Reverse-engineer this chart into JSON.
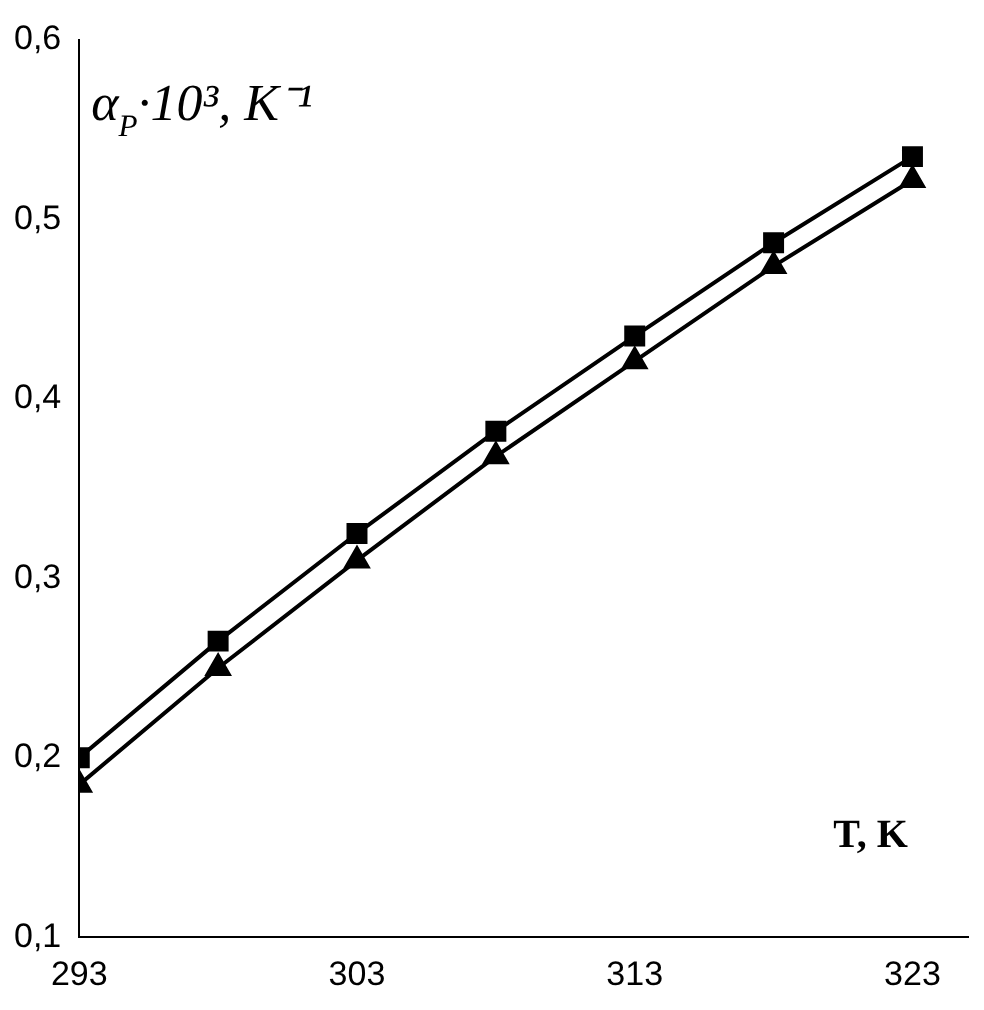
{
  "chart_data": {
    "type": "line",
    "xlabel": "T, K",
    "ylabel": "α$_{P}$·10³, K⁻¹",
    "xlim": [
      293,
      325
    ],
    "xticks": [
      293,
      303,
      313,
      323
    ],
    "ylim": [
      0.1,
      0.6
    ],
    "yticks": [
      {
        "value": 0.1,
        "label": "0,1"
      },
      {
        "value": 0.2,
        "label": "0,2"
      },
      {
        "value": 0.3,
        "label": "0,3"
      },
      {
        "value": 0.4,
        "label": "0,4"
      },
      {
        "value": 0.5,
        "label": "0,5"
      },
      {
        "value": 0.6,
        "label": "0,6"
      }
    ],
    "x": [
      293,
      298,
      303,
      308,
      313,
      318,
      323
    ],
    "series": [
      {
        "color": "#000000",
        "marker": "square",
        "values": [
          0.2,
          0.265,
          0.325,
          0.382,
          0.435,
          0.487,
          0.535
        ]
      },
      {
        "color": "#000000",
        "marker": "triangle",
        "values": [
          0.185,
          0.25,
          0.31,
          0.368,
          0.421,
          0.474,
          0.522
        ]
      }
    ],
    "grid": false,
    "legend": false,
    "line_style": "solid"
  }
}
